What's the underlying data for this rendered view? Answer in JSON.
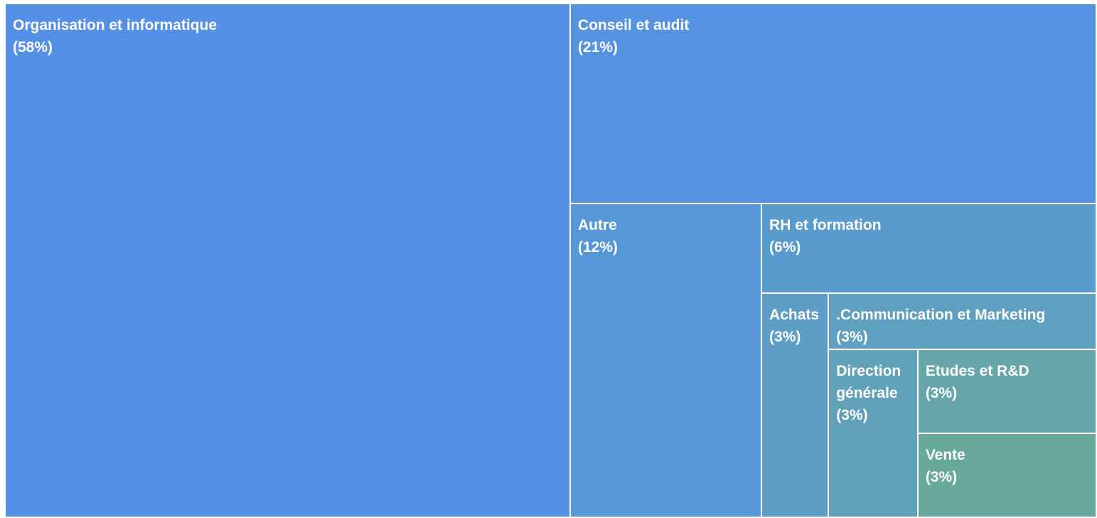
{
  "chart_data": {
    "type": "treemap",
    "categories": [
      "Organisation et informatique",
      "Conseil et audit",
      "Autre",
      "RH et formation",
      "Achats",
      ".Communication et Marketing",
      "Direction générale",
      "Etudes et R&D",
      "Vente"
    ],
    "values": [
      58,
      21,
      12,
      6,
      3,
      3,
      3,
      3,
      3
    ],
    "value_labels": [
      "(58%)",
      "(21%)",
      "(12%)",
      "(6%)",
      "(3%)",
      "(3%)",
      "(3%)",
      "(3%)",
      "(3%)"
    ],
    "colors": [
      "#5590e7",
      "#5592e1",
      "#5797d6",
      "#5a9bce",
      "#5d9dc6",
      "#5f9fc0",
      "#62a2b8",
      "#66a6a8",
      "#69a99c"
    ]
  }
}
